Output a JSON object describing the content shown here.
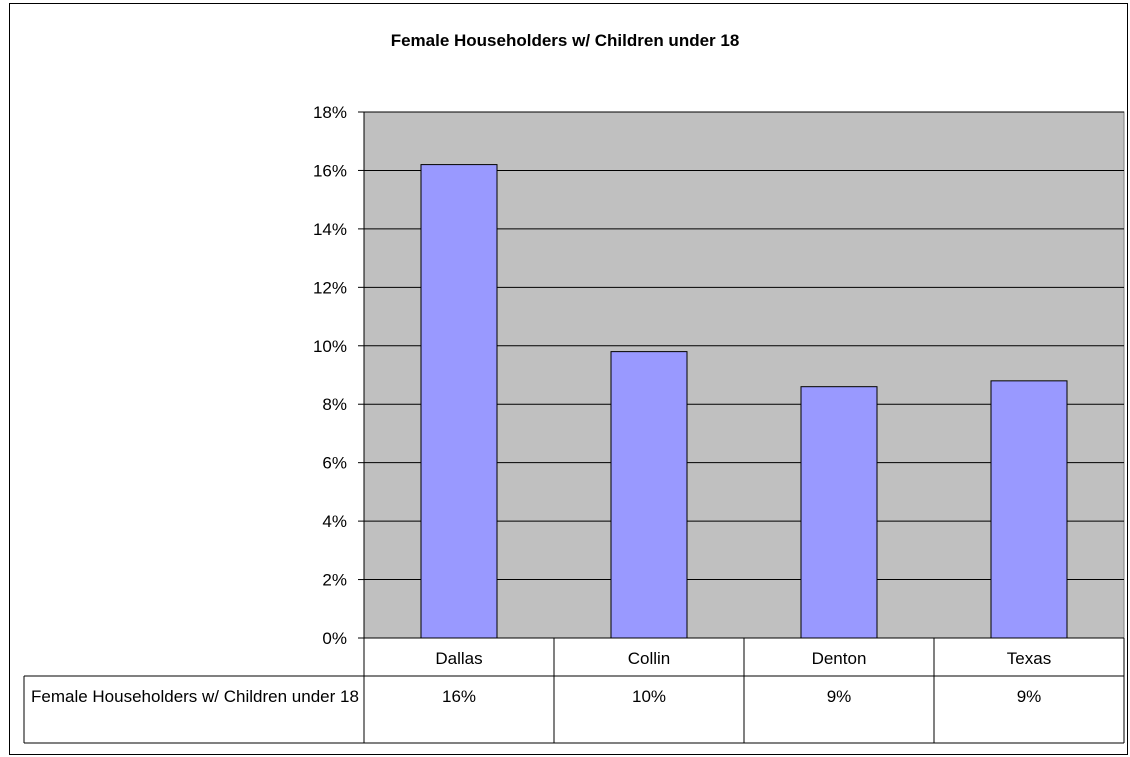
{
  "chart_data": {
    "type": "bar",
    "title": "Female Householders w/ Children under 18",
    "categories": [
      "Dallas",
      "Collin",
      "Denton",
      "Texas"
    ],
    "series": [
      {
        "name": "Female Householders w/ Children under 18",
        "values": [
          16.2,
          9.8,
          8.6,
          8.8
        ],
        "table_labels": [
          "16%",
          "10%",
          "9%",
          "9%"
        ]
      }
    ],
    "yticks": [
      "0%",
      "2%",
      "4%",
      "6%",
      "8%",
      "10%",
      "12%",
      "14%",
      "16%",
      "18%"
    ],
    "ylim": [
      0,
      18
    ],
    "grid": true,
    "data_table": true,
    "legend": "none",
    "colors": {
      "bar_fill": "#9999ff",
      "plot_background": "#c0c0c0"
    }
  }
}
